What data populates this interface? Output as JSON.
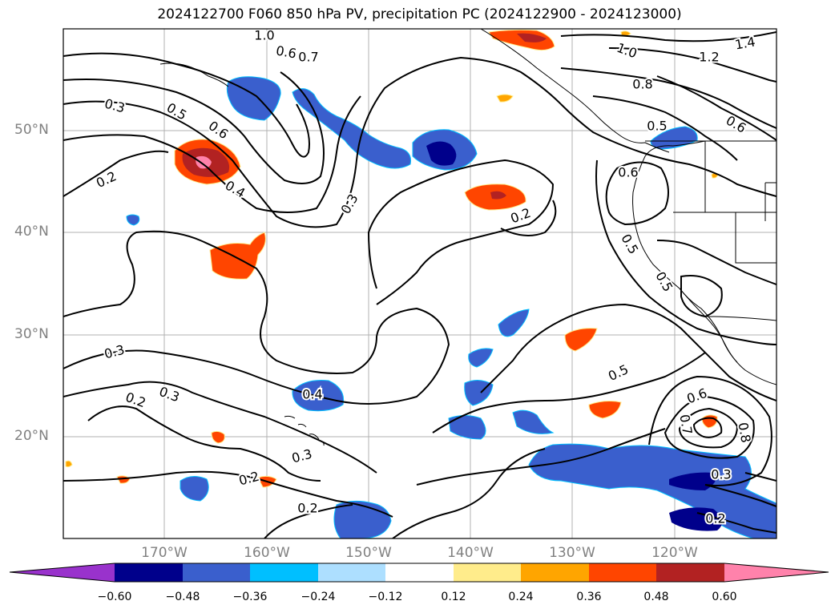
{
  "title": "2024122700 F060 850 hPa PV, precipitation PC (2024122900 - 2024123000)",
  "lat_labels": [
    "50°N",
    "40°N",
    "30°N",
    "20°N"
  ],
  "lon_labels": [
    "170°W",
    "160°W",
    "150°W",
    "140°W",
    "130°W",
    "120°W"
  ],
  "contour_labels": [
    {
      "text": "1.0"
    },
    {
      "text": "0.6"
    },
    {
      "text": "0.7"
    },
    {
      "text": "1.4"
    },
    {
      "text": "1.0"
    },
    {
      "text": "1.2"
    },
    {
      "text": "0.8"
    },
    {
      "text": "0.3"
    },
    {
      "text": "0.5"
    },
    {
      "text": "0.6"
    },
    {
      "text": "0.5"
    },
    {
      "text": "0.6"
    },
    {
      "text": "0.6"
    },
    {
      "text": "0.2"
    },
    {
      "text": "0.4"
    },
    {
      "text": "0.3"
    },
    {
      "text": "0.2"
    },
    {
      "text": "0.5"
    },
    {
      "text": "0.5"
    },
    {
      "text": "0.3"
    },
    {
      "text": "0.3"
    },
    {
      "text": "0.2"
    },
    {
      "text": "0.4"
    },
    {
      "text": "0.5"
    },
    {
      "text": "0.6"
    },
    {
      "text": "0.7"
    },
    {
      "text": "0.8"
    },
    {
      "text": "0.3"
    },
    {
      "text": "0.2"
    },
    {
      "text": "0.2"
    },
    {
      "text": "0.3"
    },
    {
      "text": "0.2"
    }
  ],
  "colorbar": {
    "colors": [
      "#9932CC",
      "#00008B",
      "#3A5FCD",
      "#00BFFF",
      "#ADDFFF",
      "#FFFFFF",
      "#FFEC8B",
      "#FFA500",
      "#FF4500",
      "#B22222",
      "#FF82AB"
    ],
    "tick_labels": [
      "−0.60",
      "−0.48",
      "−0.36",
      "−0.24",
      "−0.12",
      "0.12",
      "0.24",
      "0.36",
      "0.48",
      "0.60"
    ]
  }
}
